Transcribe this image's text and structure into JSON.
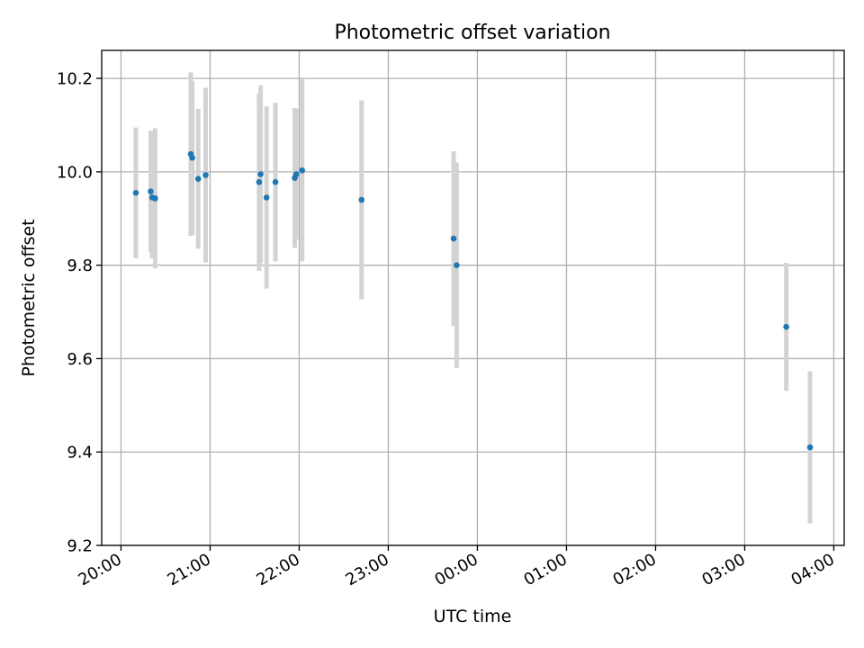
{
  "chart_data": {
    "type": "scatter",
    "title": "Photometric offset variation",
    "xlabel": "UTC time",
    "ylabel": "Photometric offset",
    "xlim": [
      "19:47",
      "04:07"
    ],
    "ylim": [
      9.2,
      10.26
    ],
    "grid": true,
    "x_ticks": [
      "20:00",
      "21:00",
      "22:00",
      "23:00",
      "00:00",
      "01:00",
      "02:00",
      "03:00",
      "04:00"
    ],
    "y_ticks": [
      "9.2",
      "9.4",
      "9.6",
      "9.8",
      "10.0",
      "10.2"
    ],
    "colors": {
      "points": "#1f77b4",
      "error_bars": "#d3d3d3",
      "grid": "#b0b0b0"
    },
    "points": [
      {
        "x": "20:10",
        "y": 9.955,
        "yerr": 0.14
      },
      {
        "x": "20:20",
        "y": 9.958,
        "yerr": 0.13
      },
      {
        "x": "20:21",
        "y": 9.945,
        "yerr": 0.13
      },
      {
        "x": "20:23",
        "y": 9.943,
        "yerr": 0.15
      },
      {
        "x": "20:47",
        "y": 10.038,
        "yerr": 0.175
      },
      {
        "x": "20:48",
        "y": 10.03,
        "yerr": 0.165
      },
      {
        "x": "20:52",
        "y": 9.985,
        "yerr": 0.15
      },
      {
        "x": "20:57",
        "y": 9.993,
        "yerr": 0.187
      },
      {
        "x": "21:33",
        "y": 9.978,
        "yerr": 0.19
      },
      {
        "x": "21:34",
        "y": 9.995,
        "yerr": 0.19
      },
      {
        "x": "21:38",
        "y": 9.945,
        "yerr": 0.195
      },
      {
        "x": "21:44",
        "y": 9.978,
        "yerr": 0.17
      },
      {
        "x": "21:57",
        "y": 9.987,
        "yerr": 0.15
      },
      {
        "x": "21:58",
        "y": 9.995,
        "yerr": 0.14
      },
      {
        "x": "22:02",
        "y": 10.003,
        "yerr": 0.195
      },
      {
        "x": "22:42",
        "y": 9.94,
        "yerr": 0.213
      },
      {
        "x": "23:44",
        "y": 9.857,
        "yerr": 0.187
      },
      {
        "x": "23:46",
        "y": 9.8,
        "yerr": 0.22
      },
      {
        "x": "03:28",
        "y": 9.668,
        "yerr": 0.137
      },
      {
        "x": "03:44",
        "y": 9.41,
        "yerr": 0.163
      }
    ]
  }
}
